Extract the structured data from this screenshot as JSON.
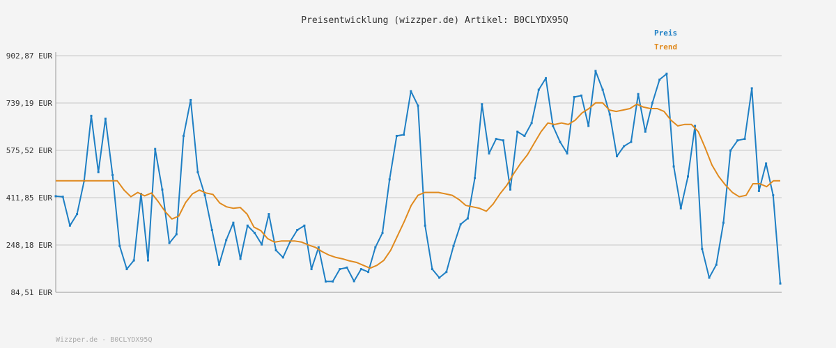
{
  "chart_data": {
    "type": "line",
    "title": "Preisentwicklung (wizzper.de) Artikel: B0CLYDX95Q",
    "y_ticks": [
      "902,87 EUR",
      "739,19 EUR",
      "575,52 EUR",
      "411,85 EUR",
      "248,18 EUR",
      "84,51 EUR"
    ],
    "ylim": [
      84.51,
      902.87
    ],
    "grid": true,
    "legend_position": "top-right",
    "series": [
      {
        "name": "Preis",
        "color": "#1e7fc4",
        "values": [
          417,
          415,
          315,
          355,
          470,
          695,
          500,
          685,
          490,
          245,
          165,
          195,
          425,
          195,
          580,
          440,
          255,
          285,
          625,
          750,
          500,
          420,
          300,
          180,
          265,
          325,
          200,
          315,
          290,
          250,
          355,
          230,
          205,
          260,
          300,
          315,
          165,
          240,
          122,
          122,
          165,
          170,
          123,
          165,
          155,
          240,
          290,
          475,
          625,
          630,
          780,
          730,
          315,
          165,
          135,
          155,
          245,
          320,
          340,
          480,
          735,
          565,
          615,
          610,
          440,
          640,
          625,
          670,
          785,
          825,
          660,
          605,
          565,
          760,
          765,
          660,
          850,
          785,
          700,
          555,
          590,
          605,
          770,
          640,
          740,
          820,
          840,
          520,
          375,
          485,
          660,
          235,
          135,
          180,
          325,
          575,
          610,
          615,
          790,
          435,
          530,
          420,
          115
        ]
      },
      {
        "name": "Trend",
        "color": "#e08a1e",
        "values": [
          470,
          470,
          470,
          470,
          470,
          470,
          470,
          470,
          470,
          470,
          438,
          415,
          430,
          418,
          428,
          398,
          364,
          338,
          348,
          395,
          425,
          438,
          428,
          423,
          393,
          380,
          375,
          378,
          355,
          310,
          298,
          270,
          258,
          262,
          262,
          262,
          258,
          248,
          240,
          225,
          213,
          205,
          200,
          193,
          188,
          178,
          168,
          178,
          195,
          230,
          280,
          330,
          385,
          420,
          430,
          430,
          430,
          425,
          420,
          405,
          385,
          380,
          375,
          365,
          390,
          425,
          455,
          495,
          530,
          560,
          600,
          640,
          670,
          665,
          670,
          665,
          680,
          705,
          720,
          740,
          740,
          715,
          710,
          715,
          720,
          735,
          725,
          720,
          720,
          710,
          680,
          660,
          665,
          665,
          640,
          585,
          525,
          485,
          455,
          430,
          415,
          420,
          460,
          460,
          450,
          470,
          470
        ]
      }
    ]
  },
  "footer": {
    "text": "Wizzper.de - B0CLYDX95Q"
  }
}
